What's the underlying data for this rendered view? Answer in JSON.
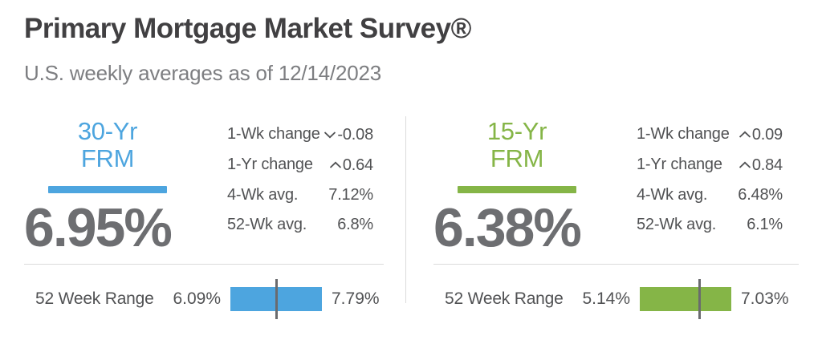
{
  "header": {
    "title": "Primary Mortgage Market Survey®",
    "subtitle": "U.S. weekly averages as of 12/14/2023"
  },
  "colors": {
    "accent_blue": "#4DA5DF",
    "accent_green": "#85B547",
    "rate_gray": "#6D6E71",
    "title_dark": "#414042",
    "subtitle_gray": "#7D7E81",
    "stat_text": "#515254",
    "divider": "#DBDBDB",
    "range_marker": "#6A6B6E"
  },
  "panels": [
    {
      "term": "30-Yr FRM",
      "accent": "#4DA5DF",
      "rate": "6.95%",
      "stats": [
        {
          "label": "1-Wk change",
          "direction": "down",
          "value": "-0.08"
        },
        {
          "label": "1-Yr change",
          "direction": "up",
          "value": "0.64"
        },
        {
          "label": "4-Wk avg.",
          "direction": "none",
          "value": "7.12%"
        },
        {
          "label": "52-Wk avg.",
          "direction": "none",
          "value": "6.8%"
        }
      ],
      "range": {
        "label": "52 Week Range",
        "min_label": "6.09%",
        "max_label": "7.79%",
        "min_value": 6.09,
        "max_value": 7.79,
        "current_value": 6.95
      }
    },
    {
      "term": "15-Yr FRM",
      "accent": "#85B547",
      "rate": "6.38%",
      "stats": [
        {
          "label": "1-Wk change",
          "direction": "up",
          "value": "0.09"
        },
        {
          "label": "1-Yr change",
          "direction": "up",
          "value": "0.84"
        },
        {
          "label": "4-Wk avg.",
          "direction": "none",
          "value": "6.48%"
        },
        {
          "label": "52-Wk avg.",
          "direction": "none",
          "value": "6.1%"
        }
      ],
      "range": {
        "label": "52 Week Range",
        "min_label": "5.14%",
        "max_label": "7.03%",
        "min_value": 5.14,
        "max_value": 7.03,
        "current_value": 6.38
      }
    }
  ],
  "chart_data": [
    {
      "type": "bar",
      "title": "30-Yr FRM",
      "current_rate_pct": 6.95,
      "one_week_change": -0.08,
      "one_year_change": 0.64,
      "four_week_avg_pct": 7.12,
      "fifty_two_week_avg_pct": 6.8,
      "fifty_two_week_range": {
        "min": 6.09,
        "max": 7.79
      },
      "marker_position": "current rate within 52-week range bar"
    },
    {
      "type": "bar",
      "title": "15-Yr FRM",
      "current_rate_pct": 6.38,
      "one_week_change": 0.09,
      "one_year_change": 0.84,
      "four_week_avg_pct": 6.48,
      "fifty_two_week_avg_pct": 6.1,
      "fifty_two_week_range": {
        "min": 5.14,
        "max": 7.03
      },
      "marker_position": "current rate within 52-week range bar"
    }
  ]
}
